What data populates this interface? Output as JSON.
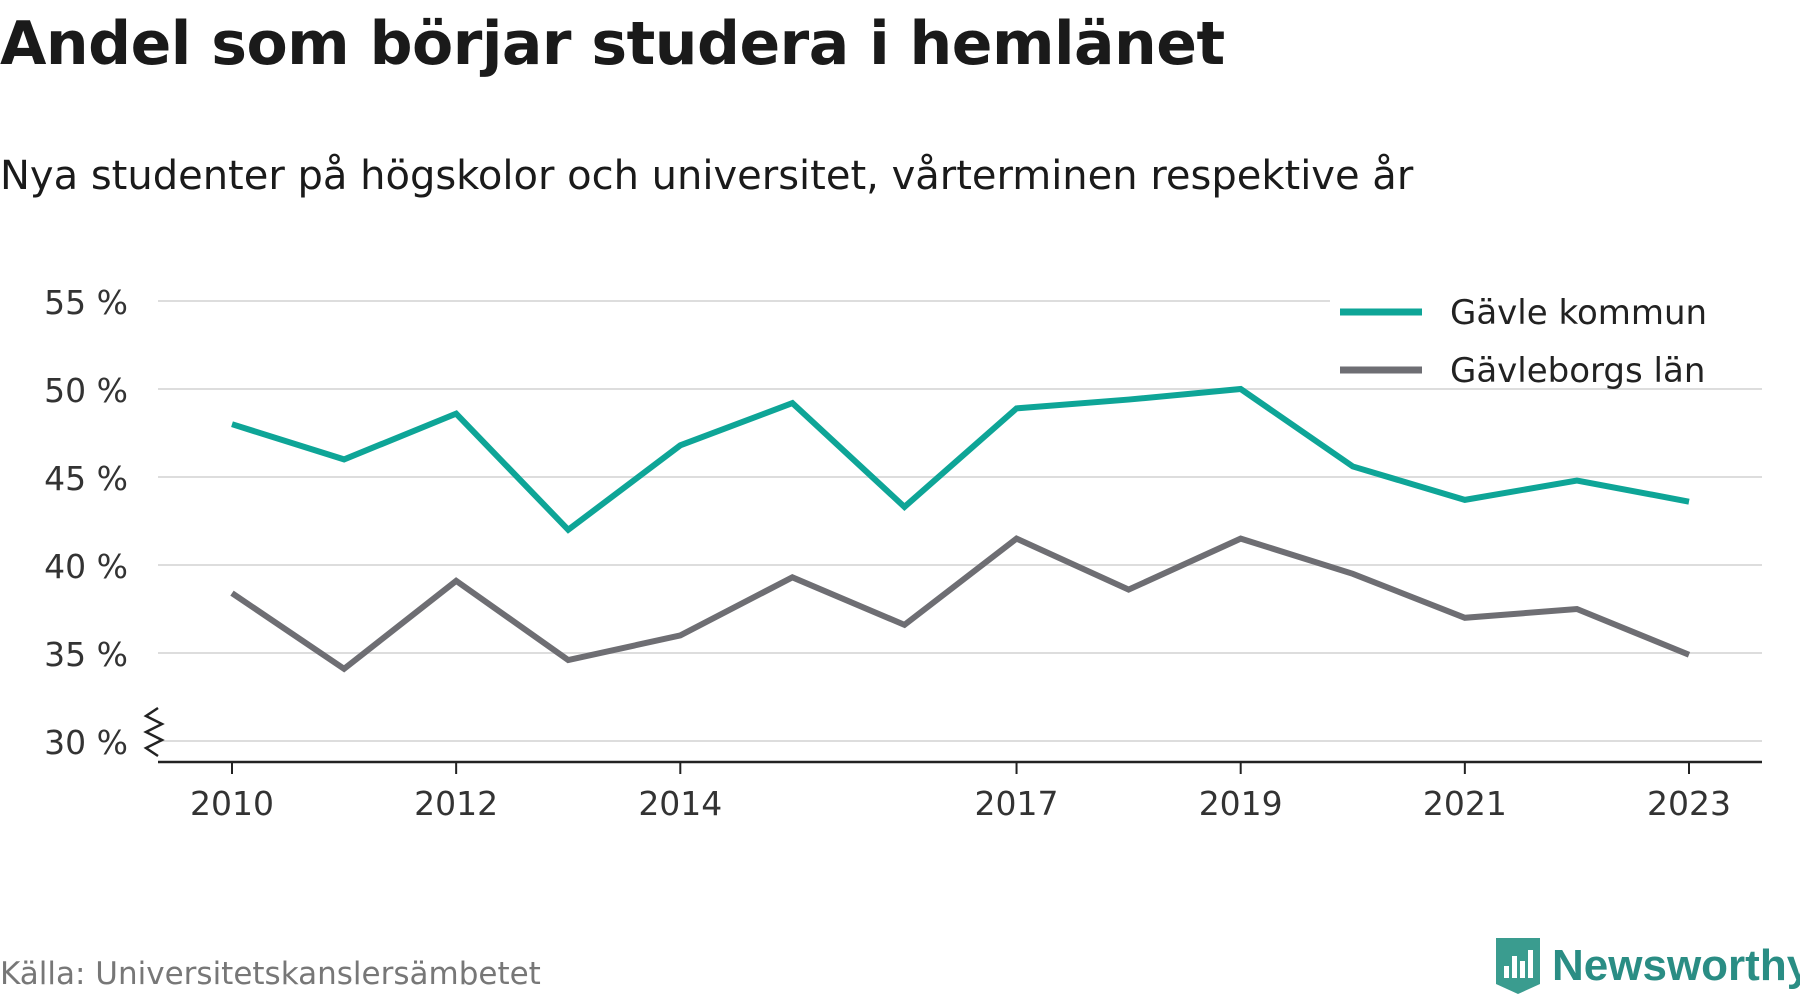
{
  "header": {
    "title": "Andel som börjar studera i hemlänet",
    "subtitle": "Nya studenter på högskolor och universitet, vårterminen respektive år"
  },
  "chart_data": {
    "type": "line",
    "x": [
      2010,
      2011,
      2012,
      2013,
      2014,
      2015,
      2016,
      2017,
      2018,
      2019,
      2020,
      2021,
      2022,
      2023
    ],
    "x_ticks": [
      2010,
      2012,
      2014,
      2017,
      2019,
      2021,
      2023
    ],
    "y_ticks": [
      30,
      35,
      40,
      45,
      50,
      55
    ],
    "y_tick_labels": [
      "30 %",
      "35 %",
      "40 %",
      "45 %",
      "50 %",
      "55 %"
    ],
    "ylim": [
      30,
      55
    ],
    "y_axis_break": true,
    "grid": true,
    "legend_position": "top-right",
    "series": [
      {
        "name": "Gävle kommun",
        "color": "#0ea597",
        "values": [
          48.0,
          46.0,
          48.6,
          42.0,
          46.8,
          49.2,
          43.3,
          48.9,
          49.4,
          50.0,
          45.6,
          43.7,
          44.8,
          43.6
        ]
      },
      {
        "name": "Gävleborgs län",
        "color": "#6e6e73",
        "values": [
          38.4,
          34.1,
          39.1,
          34.6,
          36.0,
          39.3,
          36.6,
          41.5,
          38.6,
          41.5,
          39.5,
          37.0,
          37.5,
          34.9
        ]
      }
    ]
  },
  "footer": {
    "source": "Källa: Universitetskanslersämbetet",
    "brand": "Newsworthy",
    "brand_color": "#2a8d84"
  }
}
